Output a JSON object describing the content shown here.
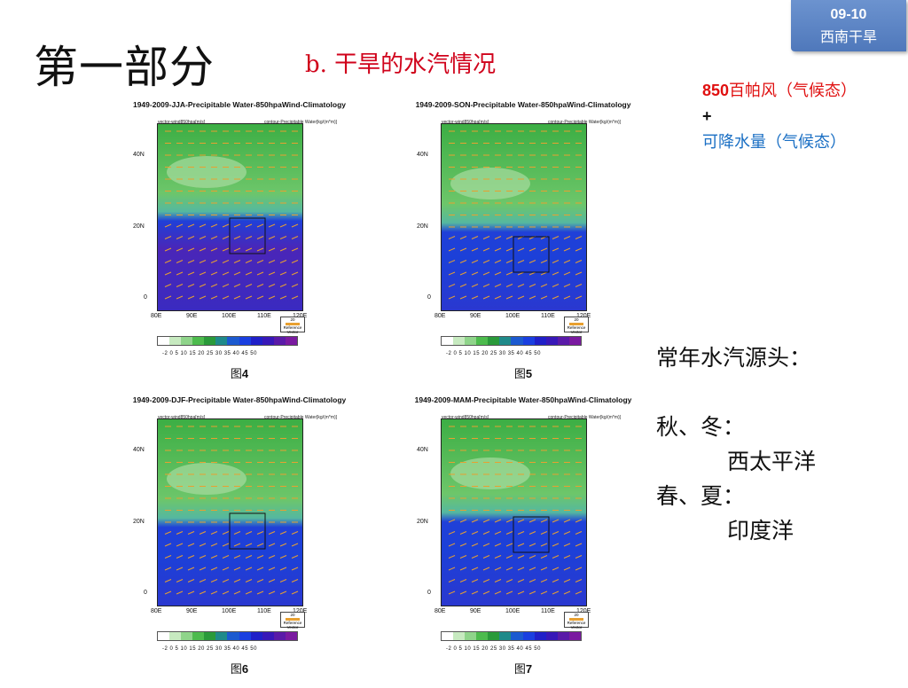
{
  "badge": {
    "number": "09-10",
    "text": "西南干旱"
  },
  "title": "第一部分",
  "subtitle": "b. 干旱的水汽情况",
  "note": {
    "line1_num": "850",
    "line1_text": "百帕风（气候态）",
    "plus": "+",
    "line2": "可降水量（气候态）"
  },
  "source": {
    "heading": "常年水汽源头：",
    "autumn_winter": "秋、冬：",
    "west_pacific": "西太平洋",
    "spring_summer": "春、夏：",
    "indian_ocean": "印度洋"
  },
  "panels": [
    {
      "title": "1949-2009-JJA-Precipitable Water-850hpaWind-Climatology",
      "fig_prefix": "图",
      "fig_num": "4",
      "season": "JJA"
    },
    {
      "title": "1949-2009-SON-Precipitable Water-850hpaWind-Climatology",
      "fig_prefix": "图",
      "fig_num": "5",
      "season": "SON"
    },
    {
      "title": "1949-2009-DJF-Precipitable Water-850hpaWind-Climatology",
      "fig_prefix": "图",
      "fig_num": "6",
      "season": "DJF"
    },
    {
      "title": "1949-2009-MAM-Precipitable Water-850hpaWind-Climatology",
      "fig_prefix": "图",
      "fig_num": "7",
      "season": "MAM"
    }
  ],
  "plot_labels": {
    "left": "vector-wind850hpa[m/s]",
    "right": "contour-Precipitable Water[kg/(m*m)]",
    "y_ticks": [
      "40N",
      "20N",
      "0"
    ],
    "x_ticks": [
      "80E",
      "90E",
      "100E",
      "110E",
      "120E"
    ],
    "ref_value": "20",
    "ref_text": "Reference Vector",
    "colorbar_ticks": "-2 0 5 10 15 20 25 30 35 40 45 50",
    "colorbar_colors": [
      "#ffffff",
      "#c7eac0",
      "#8fd48a",
      "#4dbb4d",
      "#2a9a3a",
      "#1f8a8a",
      "#1c5ad0",
      "#1a3fe0",
      "#2020c8",
      "#3818b8",
      "#5a1aa8",
      "#7a1aa0"
    ]
  }
}
